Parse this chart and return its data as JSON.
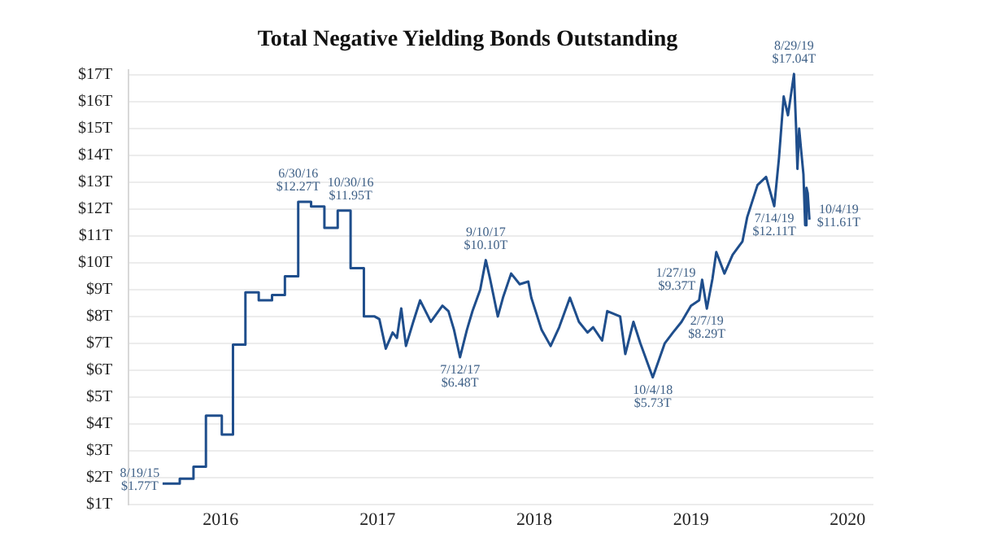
{
  "chart_data": {
    "type": "line",
    "title": "Total Negative Yielding Bonds Outstanding",
    "x": [
      "2015-08-19",
      "2015-09-28",
      "2015-09-28",
      "2015-10-30",
      "2015-10-30",
      "2015-11-28",
      "2015-11-28",
      "2016-01-04",
      "2016-01-04",
      "2016-01-30",
      "2016-01-30",
      "2016-02-28",
      "2016-02-28",
      "2016-03-30",
      "2016-03-30",
      "2016-04-30",
      "2016-04-30",
      "2016-05-30",
      "2016-05-30",
      "2016-06-30",
      "2016-06-30",
      "2016-07-30",
      "2016-07-30",
      "2016-08-30",
      "2016-08-30",
      "2016-09-30",
      "2016-09-30",
      "2016-10-30",
      "2016-10-30",
      "2016-11-30",
      "2016-11-30",
      "2016-12-25",
      "2017-01-05",
      "2017-01-20",
      "2017-02-05",
      "2017-02-15",
      "2017-02-25",
      "2017-03-08",
      "2017-03-25",
      "2017-04-10",
      "2017-05-05",
      "2017-06-01",
      "2017-06-15",
      "2017-06-28",
      "2017-07-12",
      "2017-07-28",
      "2017-08-10",
      "2017-08-28",
      "2017-09-10",
      "2017-09-20",
      "2017-10-08",
      "2017-10-20",
      "2017-11-08",
      "2017-11-28",
      "2017-12-18",
      "2017-12-25",
      "2018-01-18",
      "2018-02-08",
      "2018-02-28",
      "2018-03-25",
      "2018-04-15",
      "2018-05-05",
      "2018-05-18",
      "2018-06-08",
      "2018-06-20",
      "2018-07-20",
      "2018-08-01",
      "2018-08-20",
      "2018-09-05",
      "2018-10-04",
      "2018-11-01",
      "2018-11-20",
      "2018-12-10",
      "2019-01-01",
      "2019-01-20",
      "2019-01-27",
      "2019-02-07",
      "2019-02-20",
      "2019-03-01",
      "2019-03-20",
      "2019-04-08",
      "2019-05-01",
      "2019-05-12",
      "2019-06-05",
      "2019-06-25",
      "2019-07-14",
      "2019-07-25",
      "2019-08-05",
      "2019-08-15",
      "2019-08-29",
      "2019-09-03",
      "2019-09-06",
      "2019-09-10",
      "2019-09-14",
      "2019-09-20",
      "2019-09-24",
      "2019-09-27",
      "2019-09-30",
      "2019-10-04"
    ],
    "series": [
      {
        "color": "#1f4e8c",
        "values": [
          1.77,
          1.77,
          1.95,
          1.95,
          2.4,
          2.4,
          4.3,
          4.3,
          3.6,
          3.6,
          6.95,
          6.95,
          8.9,
          8.9,
          8.6,
          8.6,
          8.8,
          8.8,
          9.5,
          9.5,
          12.27,
          12.27,
          12.1,
          12.1,
          11.3,
          11.3,
          11.95,
          11.95,
          9.8,
          9.8,
          8.0,
          8.0,
          7.9,
          6.8,
          7.4,
          7.2,
          8.3,
          6.9,
          7.8,
          8.6,
          7.8,
          8.4,
          8.2,
          7.5,
          6.48,
          7.5,
          8.2,
          9.0,
          10.1,
          9.4,
          8.0,
          8.7,
          9.6,
          9.2,
          9.3,
          8.7,
          7.5,
          6.9,
          7.6,
          8.7,
          7.8,
          7.4,
          7.6,
          7.1,
          8.2,
          8.0,
          6.6,
          7.8,
          7.0,
          5.73,
          7.0,
          7.4,
          7.8,
          8.4,
          8.6,
          9.37,
          8.29,
          9.4,
          10.4,
          9.6,
          10.3,
          10.8,
          11.7,
          12.9,
          13.2,
          12.11,
          13.9,
          16.2,
          15.5,
          17.04,
          15.0,
          13.5,
          15.0,
          14.3,
          13.3,
          11.4,
          12.8,
          12.6,
          11.61
        ]
      }
    ],
    "xlim": [
      "2015-06-01",
      "2020-03-01"
    ],
    "xticks": [
      {
        "value": "2016-01-01",
        "label": "2016"
      },
      {
        "value": "2017-01-01",
        "label": "2017"
      },
      {
        "value": "2018-01-01",
        "label": "2018"
      },
      {
        "value": "2019-01-01",
        "label": "2019"
      },
      {
        "value": "2020-01-01",
        "label": "2020"
      }
    ],
    "ylim": [
      1,
      17.2
    ],
    "yticks": [
      {
        "value": 1,
        "label": "$1T"
      },
      {
        "value": 2,
        "label": "$2T"
      },
      {
        "value": 3,
        "label": "$3T"
      },
      {
        "value": 4,
        "label": "$4T"
      },
      {
        "value": 5,
        "label": "$5T"
      },
      {
        "value": 6,
        "label": "$6T"
      },
      {
        "value": 7,
        "label": "$7T"
      },
      {
        "value": 8,
        "label": "$8T"
      },
      {
        "value": 9,
        "label": "$9T"
      },
      {
        "value": 10,
        "label": "$10T"
      },
      {
        "value": 11,
        "label": "$11T"
      },
      {
        "value": 12,
        "label": "$12T"
      },
      {
        "value": 13,
        "label": "$13T"
      },
      {
        "value": 14,
        "label": "$14T"
      },
      {
        "value": 15,
        "label": "$15T"
      },
      {
        "value": 16,
        "label": "$16T"
      },
      {
        "value": 17,
        "label": "$17T"
      }
    ],
    "grid": "y",
    "legend": false,
    "marker": "none",
    "line_style": "solid",
    "annotations": [
      {
        "text": "8/19/15\n$1.77T",
        "x": "2015-08-19",
        "y": 1.77
      },
      {
        "text": "6/30/16\n$12.27T",
        "x": "2016-06-30",
        "y": 12.27
      },
      {
        "text": "10/30/16\n$11.95T",
        "x": "2016-10-30",
        "y": 11.95
      },
      {
        "text": "7/12/17\n$6.48T",
        "x": "2017-07-12",
        "y": 6.48
      },
      {
        "text": "9/10/17\n$10.10T",
        "x": "2017-09-10",
        "y": 10.1
      },
      {
        "text": "10/4/18\n$5.73T",
        "x": "2018-10-04",
        "y": 5.73
      },
      {
        "text": "1/27/19\n$9.37T",
        "x": "2019-01-27",
        "y": 9.37
      },
      {
        "text": "2/7/19\n$8.29T",
        "x": "2019-02-07",
        "y": 8.29
      },
      {
        "text": "7/14/19\n$12.11T",
        "x": "2019-07-14",
        "y": 12.11
      },
      {
        "text": "8/29/19\n$17.04T",
        "x": "2019-08-29",
        "y": 17.04
      },
      {
        "text": "10/4/19\n$11.61T",
        "x": "2019-10-04",
        "y": 11.61
      }
    ]
  }
}
